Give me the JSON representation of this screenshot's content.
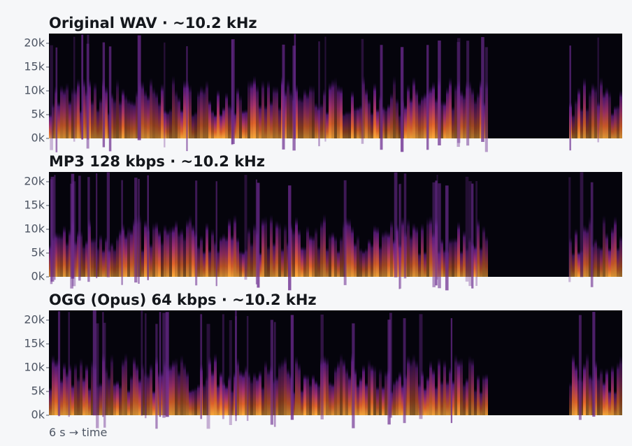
{
  "chart_data": [
    {
      "type": "spectrogram",
      "title": "Original WAV  ·  ~10.2 kHz",
      "ylim": [
        0,
        22050
      ],
      "yticks": [
        {
          "value": 0,
          "label": "0k"
        },
        {
          "value": 5000,
          "label": "5k"
        },
        {
          "value": 10000,
          "label": "10k"
        },
        {
          "value": 15000,
          "label": "15k"
        },
        {
          "value": 20000,
          "label": "20k"
        }
      ]
    },
    {
      "type": "spectrogram",
      "title": "MP3 128 kbps  ·  ~10.2 kHz",
      "ylim": [
        0,
        22050
      ],
      "yticks": [
        {
          "value": 0,
          "label": "0k"
        },
        {
          "value": 5000,
          "label": "5k"
        },
        {
          "value": 10000,
          "label": "10k"
        },
        {
          "value": 15000,
          "label": "15k"
        },
        {
          "value": 20000,
          "label": "20k"
        }
      ]
    },
    {
      "type": "spectrogram",
      "title": "OGG (Opus) 64 kbps  ·  ~10.2 kHz",
      "ylim": [
        0,
        22050
      ],
      "yticks": [
        {
          "value": 0,
          "label": "0k"
        },
        {
          "value": 5000,
          "label": "5k"
        },
        {
          "value": 10000,
          "label": "10k"
        },
        {
          "value": 15000,
          "label": "15k"
        },
        {
          "value": 20000,
          "label": "20k"
        }
      ]
    }
  ],
  "footer": "6 s  →  time"
}
